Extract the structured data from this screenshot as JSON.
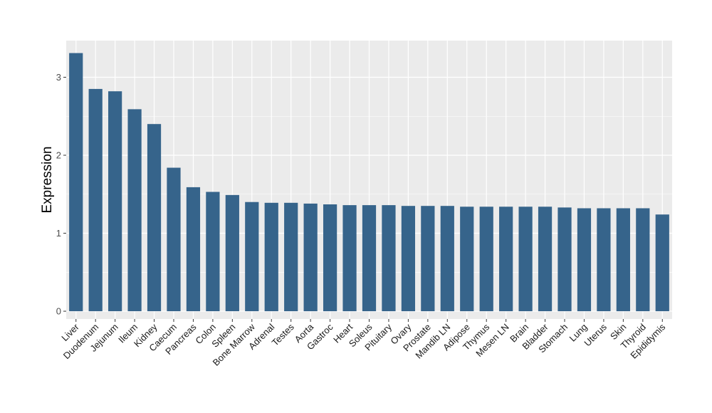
{
  "chart_data": {
    "type": "bar",
    "title": "",
    "xlabel": "",
    "ylabel": "Expression",
    "ylim": [
      -0.1,
      3.47
    ],
    "yticks": [
      0,
      1,
      2,
      3
    ],
    "grid": true,
    "legend": "none",
    "colors": {
      "bar": "#36648b",
      "panel": "#ebebeb",
      "grid": "#ffffff"
    },
    "categories": [
      "Liver",
      "Duodenum",
      "Jejunum",
      "Ileum",
      "Kidney",
      "Caecum",
      "Pancreas",
      "Colon",
      "Spleen",
      "Bone Marrow",
      "Adrenal",
      "Testes",
      "Aorta",
      "Gastroc",
      "Heart",
      "Soleus",
      "Pituitary",
      "Ovary",
      "Prostate",
      "Mandib LN",
      "Adipose",
      "Thymus",
      "Mesen LN",
      "Brain",
      "Bladder",
      "Stomach",
      "Lung",
      "Uterus",
      "Skin",
      "Thyroid",
      "Epididymis"
    ],
    "values": [
      3.31,
      2.85,
      2.82,
      2.59,
      2.4,
      1.84,
      1.59,
      1.53,
      1.49,
      1.4,
      1.39,
      1.39,
      1.38,
      1.37,
      1.36,
      1.36,
      1.36,
      1.35,
      1.35,
      1.35,
      1.34,
      1.34,
      1.34,
      1.34,
      1.34,
      1.33,
      1.32,
      1.32,
      1.32,
      1.32,
      1.24
    ]
  }
}
